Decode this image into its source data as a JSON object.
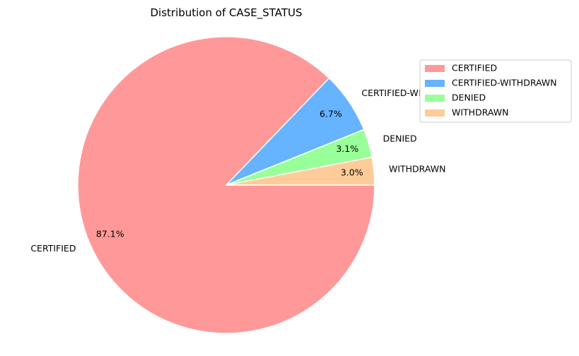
{
  "chart_data": {
    "type": "pie",
    "title": "Distribution of CASE_STATUS",
    "categories": [
      "CERTIFIED",
      "CERTIFIED-WITHDRAWN",
      "DENIED",
      "WITHDRAWN"
    ],
    "values": [
      87.1,
      6.7,
      3.1,
      3.0
    ],
    "percent_labels": [
      "87.1%",
      "6.7%",
      "3.1%",
      "3.0%"
    ],
    "colors": [
      "#ff9999",
      "#66b3ff",
      "#99ff99",
      "#ffcc99"
    ],
    "start_angle_deg": 0,
    "direction": "clockwise",
    "legend": {
      "placement": "top-right",
      "entries": [
        "CERTIFIED",
        "CERTIFIED-WITHDRAWN",
        "DENIED",
        "WITHDRAWN"
      ]
    }
  }
}
